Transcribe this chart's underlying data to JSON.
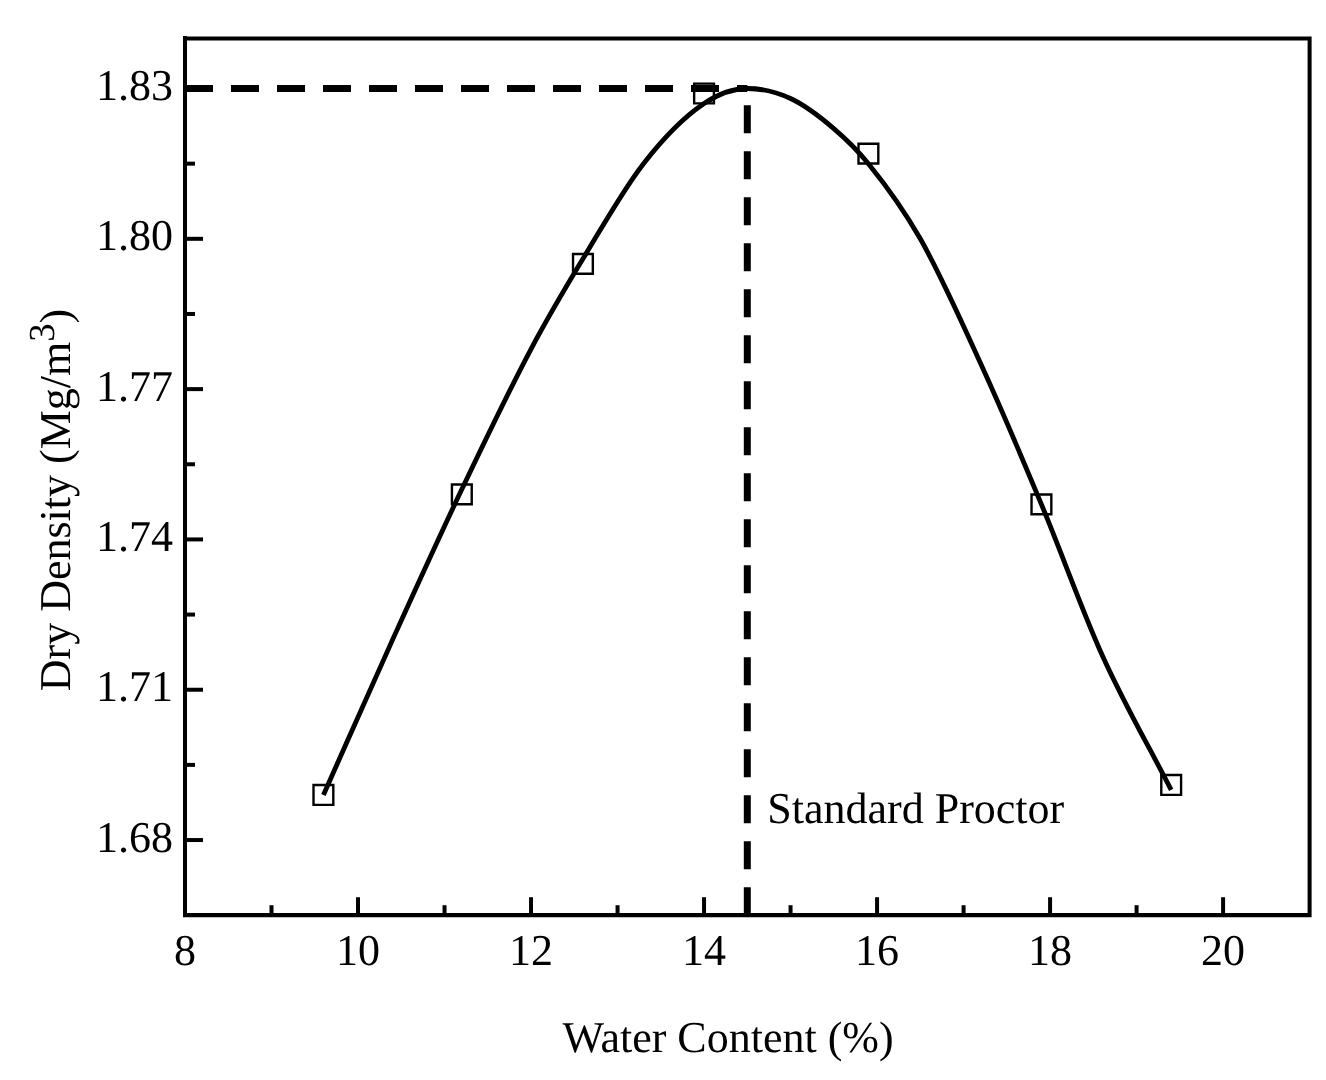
{
  "chart_data": {
    "type": "scatter",
    "xlabel": "Water Content (%)",
    "ylabel": "Dry Density (Mg/m$^{3}$)",
    "series": [
      {
        "type": "scatter",
        "color": "#000000",
        "marker": "square",
        "x": [
          9.6,
          11.2,
          12.6,
          14.0,
          15.9,
          17.9,
          19.4
        ],
        "values": [
          1.689,
          1.749,
          1.795,
          1.829,
          1.817,
          1.747,
          1.691
        ]
      },
      {
        "type": "line",
        "color": "#000000",
        "marker": "none",
        "line_style": "solid",
        "x": [
          9.6,
          10.4,
          11.2,
          12.0,
          12.6,
          13.3,
          14.0,
          14.5,
          15.0,
          15.5,
          15.9,
          16.5,
          17.2,
          17.9,
          18.6,
          19.4
        ],
        "values": [
          1.689,
          1.72,
          1.75,
          1.778,
          1.796,
          1.815,
          1.827,
          1.83,
          1.828,
          1.822,
          1.815,
          1.8,
          1.775,
          1.747,
          1.717,
          1.69
        ]
      }
    ],
    "ref_lines": [
      {
        "axis": "x",
        "value": 14.5,
        "label": "Standard Proctor",
        "color": "#000000",
        "line_style": "dashed"
      },
      {
        "axis": "y",
        "value": 1.83,
        "color": "#000000",
        "line_style": "dashed"
      }
    ],
    "xlim": [
      8,
      21
    ],
    "xticks": [
      8,
      {
        "value": 9,
        "label": null
      },
      10,
      {
        "value": 11,
        "label": null
      },
      12,
      {
        "value": 13,
        "label": null
      },
      14,
      {
        "value": 15,
        "label": null
      },
      16,
      {
        "value": 17,
        "label": null
      },
      18,
      {
        "value": 19,
        "label": null
      },
      20
    ],
    "ylim": [
      1.665,
      1.84
    ],
    "yticks": [
      {
        "value": 1.68,
        "label": "1.68"
      },
      {
        "value": 1.695,
        "label": null
      },
      {
        "value": 1.71,
        "label": "1.71"
      },
      {
        "value": 1.725,
        "label": null
      },
      {
        "value": 1.74,
        "label": "1.74"
      },
      {
        "value": 1.755,
        "label": null
      },
      {
        "value": 1.77,
        "label": "1.77"
      },
      {
        "value": 1.785,
        "label": null
      },
      {
        "value": 1.8,
        "label": "1.80"
      },
      {
        "value": 1.815,
        "label": null
      },
      {
        "value": 1.83,
        "label": "1.83"
      }
    ],
    "grid": false,
    "legend": false
  }
}
